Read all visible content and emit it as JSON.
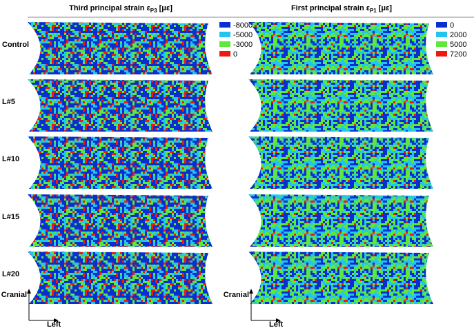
{
  "columns": [
    {
      "title_main": "Third principal strain ε",
      "title_sub": "P3",
      "title_unit": "[με]",
      "legend": [
        {
          "label": -8000,
          "color": "#0a2fd0"
        },
        {
          "label": -5000,
          "color": "#22c4f0"
        },
        {
          "label": -3000,
          "color": "#5ee83a"
        },
        {
          "label": 0,
          "color": "#ee1a10"
        }
      ]
    },
    {
      "title_main": "First principal strain ε",
      "title_sub": "P1",
      "title_unit": "[με]",
      "legend": [
        {
          "label": 0,
          "color": "#0a2fd0"
        },
        {
          "label": 2000,
          "color": "#22c4f0"
        },
        {
          "label": 5000,
          "color": "#5ee83a"
        },
        {
          "label": 7200,
          "color": "#ee1a10"
        }
      ]
    }
  ],
  "rows": [
    "Control",
    "L#5",
    "L#10",
    "L#15",
    "L#20"
  ],
  "axes": {
    "up": "Cranial",
    "right": "Left"
  }
}
